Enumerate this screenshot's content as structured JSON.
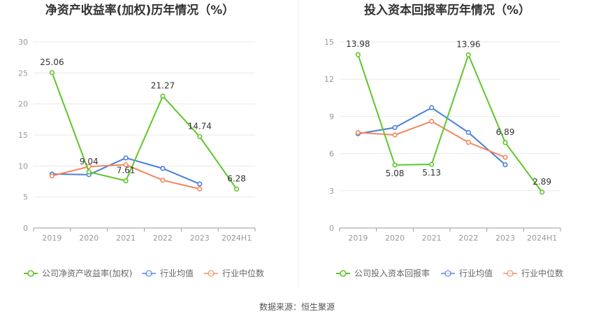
{
  "source_label": "数据来源：恒生聚源",
  "chart_data": [
    {
      "type": "line",
      "title": "净资产收益率(加权)历年情况（%）",
      "categories": [
        "2019",
        "2020",
        "2021",
        "2022",
        "2023",
        "2024H1"
      ],
      "ylim": [
        0,
        30
      ],
      "yticks": [
        0,
        5,
        10,
        15,
        20,
        25,
        30
      ],
      "grid": true,
      "legend_position": "bottom",
      "series": [
        {
          "name": "公司净资产收益率(加权)",
          "color": "#5fc62b",
          "values": [
            25.06,
            9.04,
            7.61,
            21.27,
            14.74,
            6.28
          ],
          "labels": [
            "25.06",
            "9.04",
            "7.61",
            "21.27",
            "14.74",
            "6.28"
          ]
        },
        {
          "name": "行业均值",
          "color": "#4a7ee0",
          "values": [
            8.7,
            8.6,
            11.3,
            9.6,
            7.1,
            null
          ]
        },
        {
          "name": "行业中位数",
          "color": "#f4875c",
          "values": [
            8.4,
            9.9,
            10.2,
            7.7,
            6.3,
            null
          ]
        }
      ]
    },
    {
      "type": "line",
      "title": "投入资本回报率历年情况（%）",
      "categories": [
        "2019",
        "2020",
        "2021",
        "2022",
        "2023",
        "2024H1"
      ],
      "ylim": [
        0,
        15
      ],
      "yticks": [
        0,
        3,
        6,
        9,
        12,
        15
      ],
      "grid": true,
      "legend_position": "bottom",
      "series": [
        {
          "name": "公司投入资本回报率",
          "color": "#5fc62b",
          "values": [
            13.98,
            5.08,
            5.13,
            13.96,
            6.89,
            2.89
          ],
          "labels": [
            "13.98",
            "5.08",
            "5.13",
            "13.96",
            "6.89",
            "2.89"
          ]
        },
        {
          "name": "行业均值",
          "color": "#4a7ee0",
          "values": [
            7.6,
            8.1,
            9.7,
            7.7,
            5.1,
            null
          ]
        },
        {
          "name": "行业中位数",
          "color": "#f4875c",
          "values": [
            7.7,
            7.5,
            8.6,
            6.9,
            5.7,
            null
          ]
        }
      ]
    }
  ]
}
